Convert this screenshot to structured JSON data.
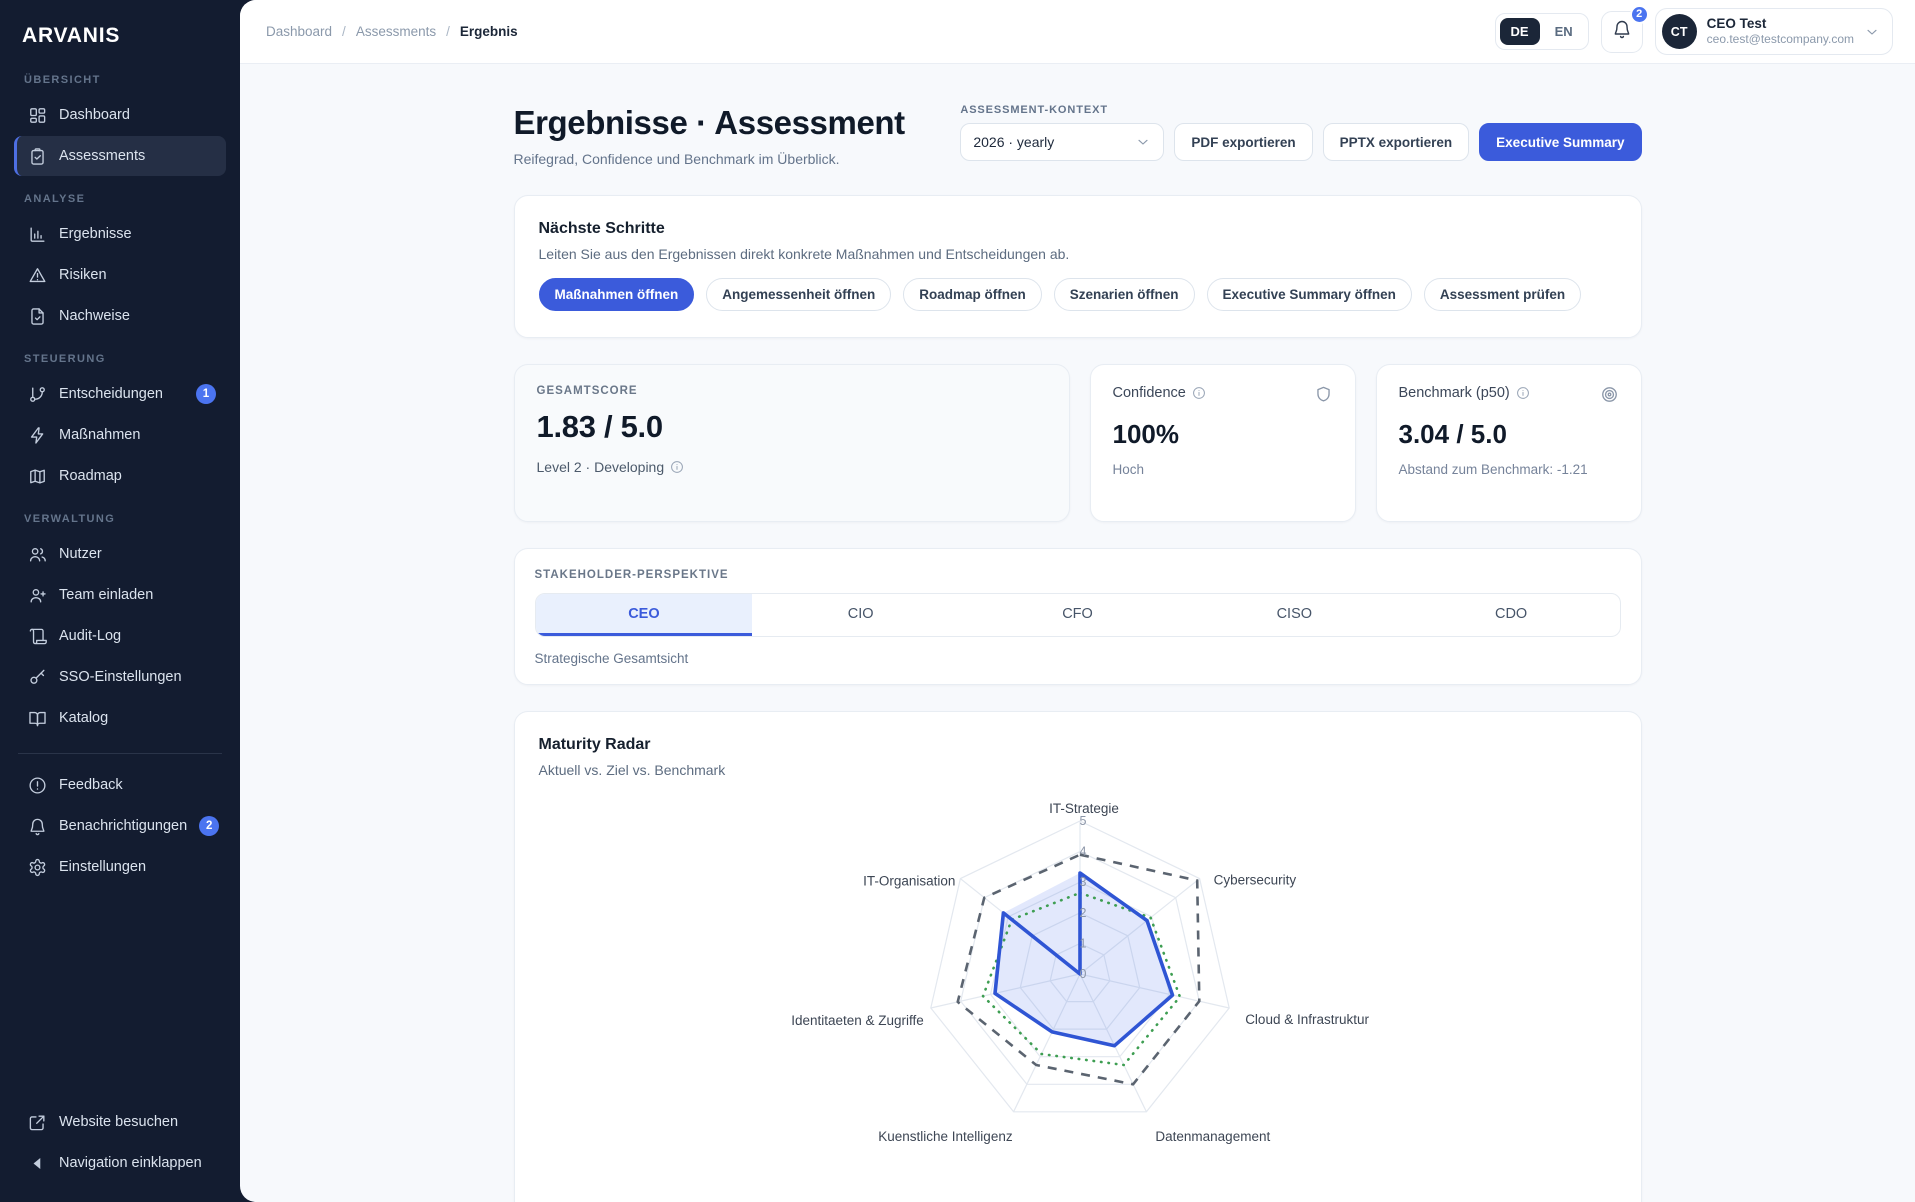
{
  "brand": "ARVANIS",
  "sidebar": {
    "sections": [
      {
        "label": "Übersicht",
        "items": [
          {
            "icon": "dashboard",
            "label": "Dashboard"
          },
          {
            "icon": "clipboard-check",
            "label": "Assessments",
            "active": true
          }
        ]
      },
      {
        "label": "Analyse",
        "items": [
          {
            "icon": "bar-chart",
            "label": "Ergebnisse"
          },
          {
            "icon": "warning",
            "label": "Risiken"
          },
          {
            "icon": "file-check",
            "label": "Nachweise"
          }
        ]
      },
      {
        "label": "Steuerung",
        "items": [
          {
            "icon": "git-branch",
            "label": "Entscheidungen",
            "badge": "1"
          },
          {
            "icon": "bolt",
            "label": "Maßnahmen"
          },
          {
            "icon": "map",
            "label": "Roadmap"
          }
        ]
      },
      {
        "label": "Verwaltung",
        "items": [
          {
            "icon": "users",
            "label": "Nutzer"
          },
          {
            "icon": "user-plus",
            "label": "Team einladen"
          },
          {
            "icon": "scroll",
            "label": "Audit-Log"
          },
          {
            "icon": "key",
            "label": "SSO-Einstellungen"
          },
          {
            "icon": "book",
            "label": "Katalog"
          }
        ]
      }
    ],
    "footer_items": [
      {
        "icon": "alert-circle",
        "label": "Feedback"
      },
      {
        "icon": "bell",
        "label": "Benachrichtigungen",
        "badge": "2"
      },
      {
        "icon": "gear",
        "label": "Einstellungen"
      }
    ],
    "bottom_items": [
      {
        "icon": "external-link",
        "label": "Website besuchen"
      },
      {
        "icon": "collapse",
        "label": "Navigation einklappen"
      }
    ]
  },
  "header": {
    "breadcrumbs": [
      "Dashboard",
      "Assessments",
      "Ergebnis"
    ],
    "language": {
      "active": "DE",
      "other": "EN"
    },
    "notification_count": "2",
    "user": {
      "initials": "CT",
      "name": "CEO Test",
      "email": "ceo.test@testcompany.com"
    }
  },
  "page": {
    "title": "Ergebnisse · Assessment",
    "subtitle": "Reifegrad, Confidence und Benchmark im Überblick.",
    "context_label": "ASSESSMENT-KONTEXT",
    "context_value": "2026 · yearly",
    "export_pdf_label": "PDF exportieren",
    "export_pptx_label": "PPTX exportieren",
    "executive_summary_label": "Executive Summary"
  },
  "next_steps": {
    "title": "Nächste Schritte",
    "description": "Leiten Sie aus den Ergebnissen direkt konkrete Maßnahmen und Entscheidungen ab.",
    "actions": [
      {
        "label": "Maßnahmen öffnen",
        "primary": true
      },
      {
        "label": "Angemessenheit öffnen"
      },
      {
        "label": "Roadmap öffnen"
      },
      {
        "label": "Szenarien öffnen"
      },
      {
        "label": "Executive Summary öffnen"
      },
      {
        "label": "Assessment prüfen"
      }
    ]
  },
  "scores": {
    "gesamtscore": {
      "label": "GESAMTSCORE",
      "value": "1.83 / 5.0",
      "sub": "Level 2 · Developing"
    },
    "confidence": {
      "label": "Confidence",
      "value": "100%",
      "sub": "Hoch"
    },
    "benchmark": {
      "label": "Benchmark (p50)",
      "value": "3.04 / 5.0",
      "sub": "Abstand zum Benchmark: -1.21"
    }
  },
  "stakeholder": {
    "label": "STAKEHOLDER-PERSPEKTIVE",
    "tabs": [
      "CEO",
      "CIO",
      "CFO",
      "CISO",
      "CDO"
    ],
    "active_tab": "CEO",
    "description": "Strategische Gesamtsicht"
  },
  "chart_data": {
    "type": "radar",
    "title": "Maturity Radar",
    "subtitle": "Aktuell vs. Ziel vs. Benchmark",
    "categories": [
      "IT-Strategie",
      "Cybersecurity",
      "Cloud & Infrastruktur",
      "Datenmanagement",
      "Kuenstliche Intelligenz",
      "Identitaeten & Zugriffe",
      "IT-Organisation"
    ],
    "series": [
      {
        "name": "Aktuell",
        "style": "solid",
        "color": "#2f55d4",
        "fill": "rgba(84,118,235,0.17)",
        "values": [
          3.3,
          2.8,
          3.1,
          2.6,
          2.1,
          2.85,
          3.2
        ],
        "closes_through_center": true
      },
      {
        "name": "Ziel",
        "style": "dashed",
        "color": "#5b6470",
        "values": [
          3.9,
          4.9,
          4.0,
          4.0,
          3.3,
          4.1,
          4.0
        ]
      },
      {
        "name": "Benchmark",
        "style": "dotted",
        "color": "#3e9e52",
        "values": [
          2.65,
          2.95,
          3.35,
          3.3,
          2.9,
          3.25,
          2.85
        ]
      }
    ],
    "rlim": [
      0,
      5
    ],
    "ticks": [
      0,
      1,
      2,
      3,
      4,
      5
    ],
    "grid": true,
    "legend_position": "none"
  }
}
